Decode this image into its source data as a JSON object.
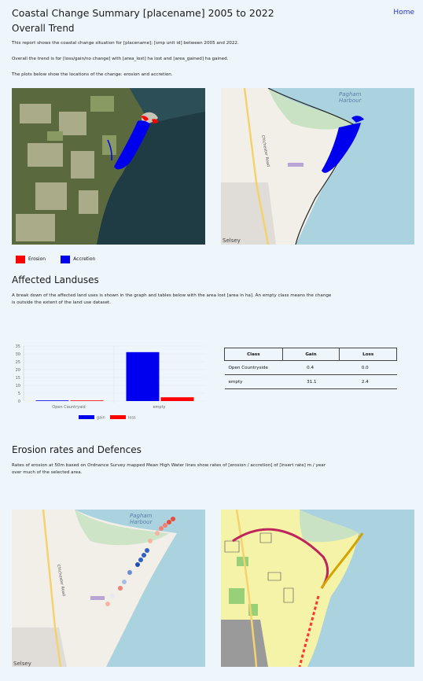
{
  "header": {
    "title": "Coastal Change Summary [placename] 2005 to 2022",
    "home_link": "Home"
  },
  "overall": {
    "heading": "Overall Trend",
    "para1": "This report shows the coastal change situation for [placename]; [smp unit id] between 2005 and 2022.",
    "para2": "Overall the trend is for [loss/gain/no change] with [area_lost] ha lost and [area_gained] ha gained.",
    "para3": "The plots below show the locations of the change: erosion and accretion.",
    "legend": [
      {
        "label": "Erosion",
        "color": "#ff0000"
      },
      {
        "label": "Accretion",
        "color": "#0000ee"
      }
    ],
    "map_right_labels": {
      "place1": "Pagham",
      "place2": "Harbour",
      "road": "Chichester Road",
      "town": "Selsey"
    }
  },
  "landuse": {
    "heading": "Affected Landuses",
    "para": "A break down of the affected land uses is shown in the graph and tables below with the area lost [area in ha]. An empty class means the change is outside the extent of the land use dataset.",
    "table": {
      "headers": [
        "Class",
        "Gain",
        "Loss"
      ],
      "rows": [
        [
          "Open Countryside",
          "0.4",
          "0.0"
        ],
        [
          "empty",
          "31.1",
          "2.4"
        ]
      ]
    }
  },
  "chart_data": {
    "type": "bar",
    "categories": [
      "Open Countryaid",
      "empty"
    ],
    "series": [
      {
        "name": "gain",
        "values": [
          0.4,
          31.1
        ],
        "color": "#0000ee"
      },
      {
        "name": "loss",
        "values": [
          0.0,
          2.4
        ],
        "color": "#ff0000"
      }
    ],
    "y_ticks": [
      "0",
      "5",
      "10",
      "15",
      "20",
      "25",
      "30",
      "35"
    ],
    "ylim": [
      0,
      35
    ],
    "grid": true,
    "legend_position": "bottom"
  },
  "erosion": {
    "heading": "Erosion rates and Defences",
    "para": "Rates of erosion at 50m based on Ordnance Survey mapped Mean High Water lines show rates of [erosion / accretion] of [insert rate] m / year over much of the selected area.",
    "map_labels": {
      "place1": "Pagham",
      "place2": "Harbour",
      "road": "Chichester Road",
      "town": "Selsey"
    }
  }
}
